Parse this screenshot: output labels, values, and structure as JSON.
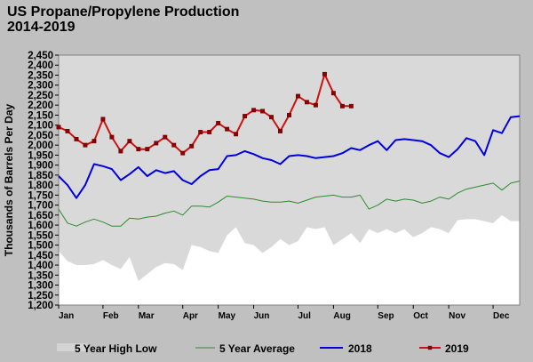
{
  "title": "US Propane/Propylene Production",
  "subtitle": "2014-2019",
  "colors": {
    "background": "#c0c0c0",
    "plot": "#ffffff",
    "band": "#d9d9d9",
    "avg": "#2e8b2e",
    "y2018": "#0000dd",
    "y2019": "#cc1111"
  },
  "chart_data": {
    "type": "line",
    "title": "US Propane/Propylene Production",
    "subtitle": "2014-2019",
    "ylabel": "Thousands of Barrels Per Day",
    "xlabel": "",
    "ylim": [
      1200,
      2450
    ],
    "ytick_step": 50,
    "xlim": [
      1,
      53
    ],
    "x_ticks": [
      {
        "label": "Jan",
        "week": 1
      },
      {
        "label": "Feb",
        "week": 6
      },
      {
        "label": "Mar",
        "week": 10
      },
      {
        "label": "Apr",
        "week": 15
      },
      {
        "label": "May",
        "week": 19
      },
      {
        "label": "Jun",
        "week": 23
      },
      {
        "label": "Jul",
        "week": 28
      },
      {
        "label": "Aug",
        "week": 32
      },
      {
        "label": "Sep",
        "week": 37
      },
      {
        "label": "Oct",
        "week": 41
      },
      {
        "label": "Nov",
        "week": 45
      },
      {
        "label": "Dec",
        "week": 50
      }
    ],
    "grid": false,
    "legend_position": "bottom",
    "series": [
      {
        "name": "5 Year High Low",
        "kind": "band",
        "x": [
          1,
          2,
          3,
          4,
          5,
          6,
          7,
          8,
          9,
          10,
          11,
          12,
          13,
          14,
          15,
          16,
          17,
          18,
          19,
          20,
          21,
          22,
          23,
          24,
          25,
          26,
          27,
          28,
          29,
          30,
          31,
          32,
          33,
          34,
          35,
          36,
          37,
          38,
          39,
          40,
          41,
          42,
          43,
          44,
          45,
          46,
          47,
          48,
          49,
          50,
          51,
          52,
          53
        ],
        "high": [
          2450,
          2450,
          2450,
          2450,
          2450,
          2450,
          2450,
          2450,
          2450,
          2450,
          2450,
          2450,
          2450,
          2450,
          2450,
          2450,
          2450,
          2450,
          2450,
          2450,
          2450,
          2450,
          2450,
          2450,
          2450,
          2450,
          2450,
          2450,
          2450,
          2450,
          2450,
          2450,
          2450,
          2450,
          2450,
          2450,
          2450,
          2450,
          2450,
          2450,
          2450,
          2450,
          2450,
          2450,
          2450,
          2450,
          2450,
          2450,
          2450,
          2450,
          2450,
          2450,
          2450
        ],
        "low": [
          1470,
          1420,
          1400,
          1400,
          1405,
          1425,
          1400,
          1380,
          1440,
          1320,
          1355,
          1390,
          1410,
          1405,
          1375,
          1500,
          1490,
          1470,
          1460,
          1550,
          1590,
          1510,
          1500,
          1460,
          1490,
          1530,
          1500,
          1520,
          1590,
          1580,
          1590,
          1500,
          1530,
          1560,
          1510,
          1580,
          1560,
          1580,
          1560,
          1580,
          1540,
          1560,
          1590,
          1580,
          1560,
          1625,
          1630,
          1630,
          1620,
          1610,
          1650,
          1620,
          1620
        ]
      },
      {
        "name": "5 Year Average",
        "kind": "line",
        "x": [
          1,
          2,
          3,
          4,
          5,
          6,
          7,
          8,
          9,
          10,
          11,
          12,
          13,
          14,
          15,
          16,
          17,
          18,
          19,
          20,
          21,
          22,
          23,
          24,
          25,
          26,
          27,
          28,
          29,
          30,
          31,
          32,
          33,
          34,
          35,
          36,
          37,
          38,
          39,
          40,
          41,
          42,
          43,
          44,
          45,
          46,
          47,
          48,
          49,
          50,
          51,
          52,
          53
        ],
        "values": [
          1680,
          1610,
          1595,
          1615,
          1630,
          1615,
          1595,
          1595,
          1635,
          1630,
          1640,
          1645,
          1660,
          1670,
          1650,
          1695,
          1695,
          1690,
          1715,
          1745,
          1740,
          1735,
          1730,
          1720,
          1715,
          1715,
          1720,
          1710,
          1725,
          1740,
          1745,
          1750,
          1740,
          1740,
          1750,
          1680,
          1700,
          1730,
          1720,
          1730,
          1725,
          1710,
          1720,
          1740,
          1730,
          1760,
          1780,
          1790,
          1800,
          1810,
          1775,
          1810,
          1820
        ]
      },
      {
        "name": "2018",
        "kind": "line",
        "x": [
          1,
          2,
          3,
          4,
          5,
          6,
          7,
          8,
          9,
          10,
          11,
          12,
          13,
          14,
          15,
          16,
          17,
          18,
          19,
          20,
          21,
          22,
          23,
          24,
          25,
          26,
          27,
          28,
          29,
          30,
          31,
          32,
          33,
          34,
          35,
          36,
          37,
          38,
          39,
          40,
          41,
          42,
          43,
          44,
          45,
          46,
          47,
          48,
          49,
          50,
          51,
          52,
          53
        ],
        "values": [
          1845,
          1800,
          1735,
          1800,
          1905,
          1895,
          1880,
          1825,
          1855,
          1890,
          1845,
          1875,
          1860,
          1870,
          1825,
          1805,
          1845,
          1875,
          1880,
          1945,
          1950,
          1970,
          1955,
          1935,
          1925,
          1905,
          1945,
          1950,
          1945,
          1935,
          1940,
          1945,
          1960,
          1985,
          1975,
          2000,
          2020,
          1975,
          2025,
          2030,
          2025,
          2020,
          2000,
          1960,
          1940,
          1980,
          2035,
          2020,
          1950,
          2075,
          2060,
          2140,
          2145
        ]
      },
      {
        "name": "2019",
        "kind": "line-marker",
        "x": [
          1,
          2,
          3,
          4,
          5,
          6,
          7,
          8,
          9,
          10,
          11,
          12,
          13,
          14,
          15,
          16,
          17,
          18,
          19,
          20,
          21,
          22,
          23,
          24,
          25,
          26,
          27,
          28,
          29,
          30,
          31,
          32,
          33,
          34
        ],
        "values": [
          2090,
          2070,
          2030,
          2000,
          2020,
          2130,
          2040,
          1970,
          2020,
          1980,
          1980,
          2010,
          2040,
          2000,
          1960,
          1995,
          2065,
          2065,
          2110,
          2080,
          2055,
          2145,
          2175,
          2170,
          2140,
          2070,
          2150,
          2245,
          2215,
          2200,
          2355,
          2260,
          2195,
          2195
        ]
      }
    ]
  }
}
